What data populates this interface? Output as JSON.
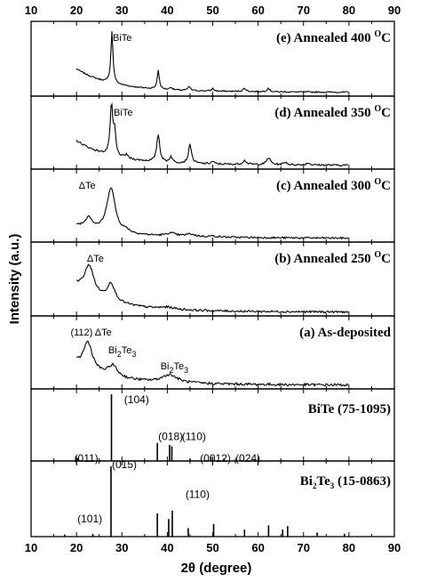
{
  "chart_data": {
    "type": "line",
    "xlabel": "2θ (degree)",
    "ylabel": "Intensity (a.u.)",
    "xlim": [
      10,
      90
    ],
    "x_ticks": [
      10,
      20,
      30,
      40,
      50,
      60,
      70,
      80,
      90
    ],
    "x_tick_labels": [
      "10",
      "20",
      "30",
      "40",
      "50",
      "60",
      "70",
      "80",
      "90"
    ],
    "panels": [
      {
        "id": "e",
        "title": {
          "main": "(e) Annealed 400 ",
          "sup": "O",
          "tail": "C"
        },
        "baseline": 0.38,
        "noise": 0.012,
        "peaks": [
          [
            27.8,
            1.0,
            0.28
          ],
          [
            38.0,
            0.36,
            0.28
          ],
          [
            40.8,
            0.05,
            0.3
          ],
          [
            44.8,
            0.08,
            0.3
          ],
          [
            50.0,
            0.05,
            0.3
          ],
          [
            57.0,
            0.06,
            0.4
          ],
          [
            62.2,
            0.07,
            0.35
          ]
        ],
        "labels": [
          {
            "text": "BiTe",
            "x": 28.0
          }
        ]
      },
      {
        "id": "d",
        "title": {
          "main": "(d) Annealed 350 ",
          "sup": "O",
          "tail": "C"
        },
        "baseline": 0.42,
        "noise": 0.018,
        "peaks": [
          [
            27.7,
            1.0,
            0.35
          ],
          [
            28.4,
            0.45,
            0.3
          ],
          [
            31.0,
            0.08,
            0.35
          ],
          [
            38.0,
            0.55,
            0.4
          ],
          [
            40.8,
            0.12,
            0.35
          ],
          [
            45.0,
            0.38,
            0.4
          ],
          [
            50.0,
            0.05,
            0.4
          ],
          [
            57.0,
            0.08,
            0.5
          ],
          [
            62.3,
            0.14,
            0.5
          ],
          [
            66.0,
            0.05,
            0.5
          ],
          [
            71.0,
            0.04,
            0.5
          ]
        ],
        "labels": [
          {
            "text": "BiTe",
            "x": 28.2
          }
        ]
      },
      {
        "id": "c",
        "title": {
          "main": "(c) Annealed 300 ",
          "sup": "O",
          "tail": "C"
        },
        "baseline": 0.18,
        "noise": 0.018,
        "peaks": [
          [
            22.7,
            0.22,
            0.9
          ],
          [
            27.6,
            0.9,
            1.1
          ],
          [
            31.0,
            0.05,
            0.8
          ],
          [
            40.8,
            0.06,
            1.2
          ],
          [
            45.0,
            0.05,
            1.2
          ],
          [
            50.0,
            0.02,
            1.2
          ]
        ],
        "labels": [
          {
            "text": "ΔTe",
            "x": 20.5
          }
        ]
      },
      {
        "id": "b",
        "title": {
          "main": "(b) Annealed 250 ",
          "sup": "O",
          "tail": "C"
        },
        "baseline": 0.46,
        "noise": 0.02,
        "peaks": [
          [
            22.8,
            0.55,
            1.2
          ],
          [
            27.6,
            0.35,
            1.0
          ],
          [
            40.0,
            0.04,
            2.0
          ]
        ],
        "labels": [
          {
            "text": "ΔTe",
            "x": 22.3
          }
        ]
      },
      {
        "id": "a",
        "title": {
          "main": "(a) As-deposited",
          "sup": "",
          "tail": ""
        },
        "baseline": 0.35,
        "noise": 0.025,
        "peaks": [
          [
            22.5,
            0.55,
            1.2
          ],
          [
            28.0,
            0.22,
            1.2
          ],
          [
            40.5,
            0.16,
            2.0
          ]
        ],
        "labels": [
          {
            "text": "(112) ΔTe",
            "x": 18.7
          },
          {
            "text": "Bi",
            "sub": "2",
            "tail": "Te",
            "sub2": "3",
            "x": 27.0,
            "level": 0.64
          },
          {
            "text": "Bi",
            "sub": "2",
            "tail": "Te",
            "sub2": "3",
            "x": 38.5,
            "level": 0.32
          }
        ]
      }
    ],
    "reference_patterns": [
      {
        "id": "BiTe",
        "title": "BiTe (75-1095)",
        "lines": [
          [
            20.2,
            0.04
          ],
          [
            27.7,
            1.0
          ],
          [
            37.8,
            0.27
          ],
          [
            40.5,
            0.24
          ],
          [
            41.0,
            0.22
          ],
          [
            45.0,
            0.03
          ],
          [
            49.6,
            0.06
          ],
          [
            52.5,
            0.04
          ]
        ],
        "labels": [
          {
            "text": "(011)",
            "x": 19.5,
            "level": 0.12
          },
          {
            "text": "(104)",
            "x": 30.5,
            "level": 1.0
          },
          {
            "text": "(018)",
            "x": 38.0,
            "level": 0.45
          },
          {
            "text": "(110)",
            "x": 43.2,
            "level": 0.45
          },
          {
            "text": "(0012)",
            "x": 47.2,
            "level": 0.12
          },
          {
            "text": "(024)",
            "x": 55.0,
            "level": 0.12
          }
        ]
      },
      {
        "id": "Bi2Te3",
        "title": {
          "main": "Bi",
          "sub": "2",
          "tail": "Te",
          "sub2": "3",
          "rest": " (15-0863)"
        },
        "lines": [
          [
            17.4,
            0.03
          ],
          [
            23.6,
            0.04
          ],
          [
            27.6,
            1.0
          ],
          [
            37.8,
            0.33
          ],
          [
            40.3,
            0.25
          ],
          [
            41.1,
            0.37
          ],
          [
            44.6,
            0.12
          ],
          [
            50.2,
            0.18
          ],
          [
            57.0,
            0.1
          ],
          [
            62.3,
            0.16
          ],
          [
            65.4,
            0.1
          ],
          [
            66.5,
            0.15
          ],
          [
            73.0,
            0.06
          ],
          [
            79.0,
            0.04
          ]
        ],
        "labels": [
          {
            "text": "(015)",
            "x": 27.8,
            "level": 1.1
          },
          {
            "text": "(101)",
            "x": 20.2,
            "level": 0.33
          },
          {
            "text": "(110)",
            "x": 44.0,
            "level": 0.68
          }
        ]
      }
    ]
  }
}
